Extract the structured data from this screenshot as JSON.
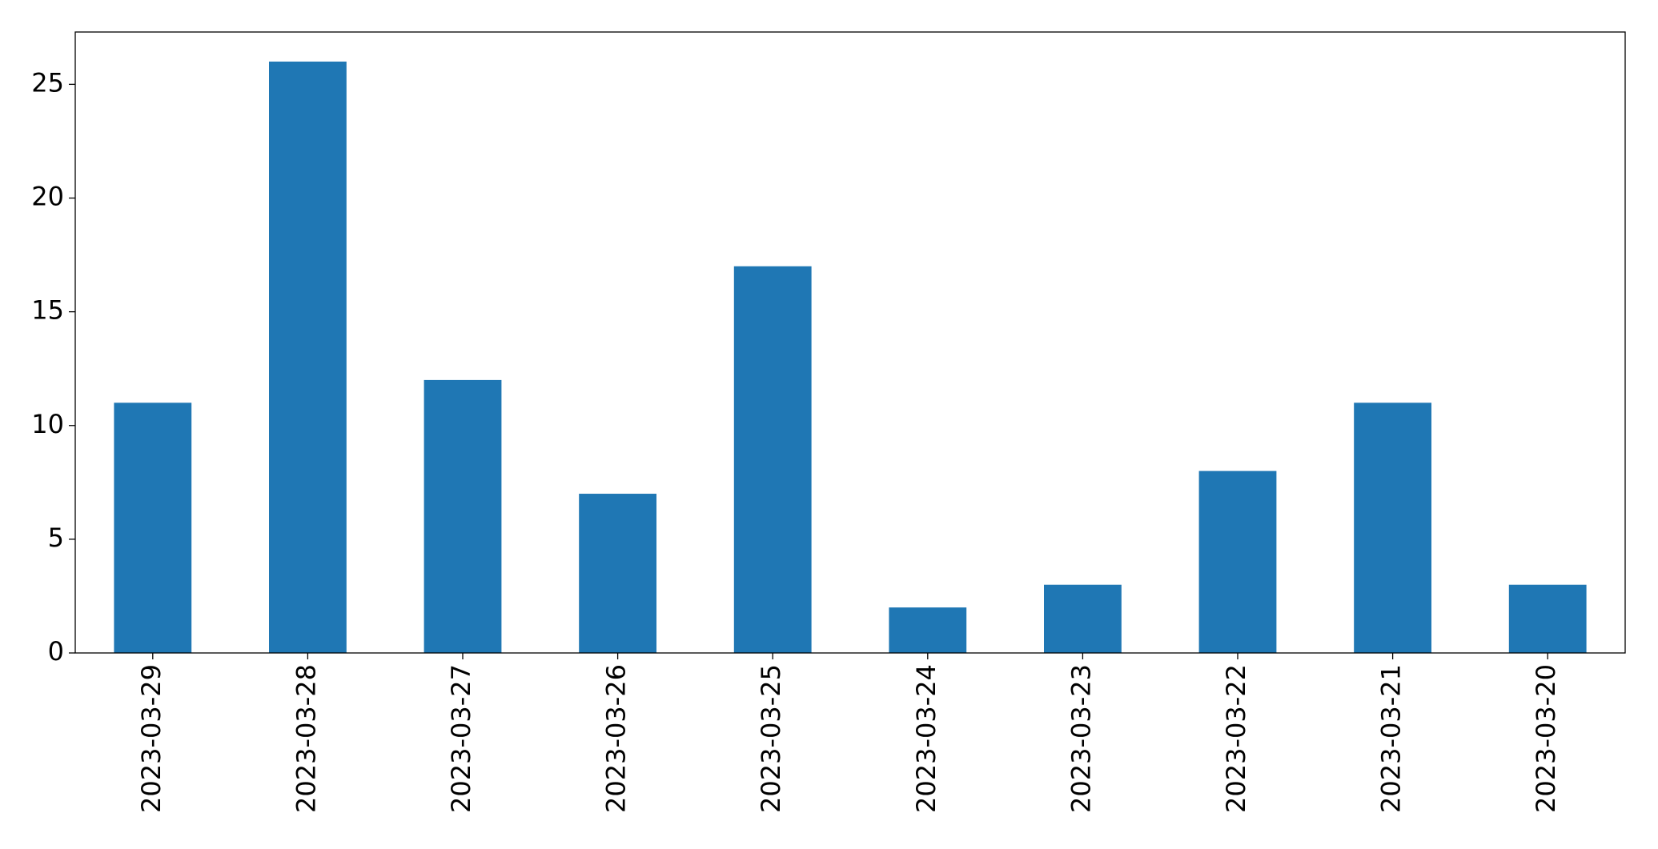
{
  "chart_data": {
    "type": "bar",
    "categories": [
      "2023-03-29",
      "2023-03-28",
      "2023-03-27",
      "2023-03-26",
      "2023-03-25",
      "2023-03-24",
      "2023-03-23",
      "2023-03-22",
      "2023-03-21",
      "2023-03-20"
    ],
    "values": [
      11,
      26,
      12,
      7,
      17,
      2,
      3,
      8,
      11,
      3
    ],
    "color": "#1f77b4",
    "ylim": [
      0,
      27.3
    ],
    "yticks": [
      0,
      5,
      10,
      15,
      20,
      25
    ],
    "grid": false
  }
}
